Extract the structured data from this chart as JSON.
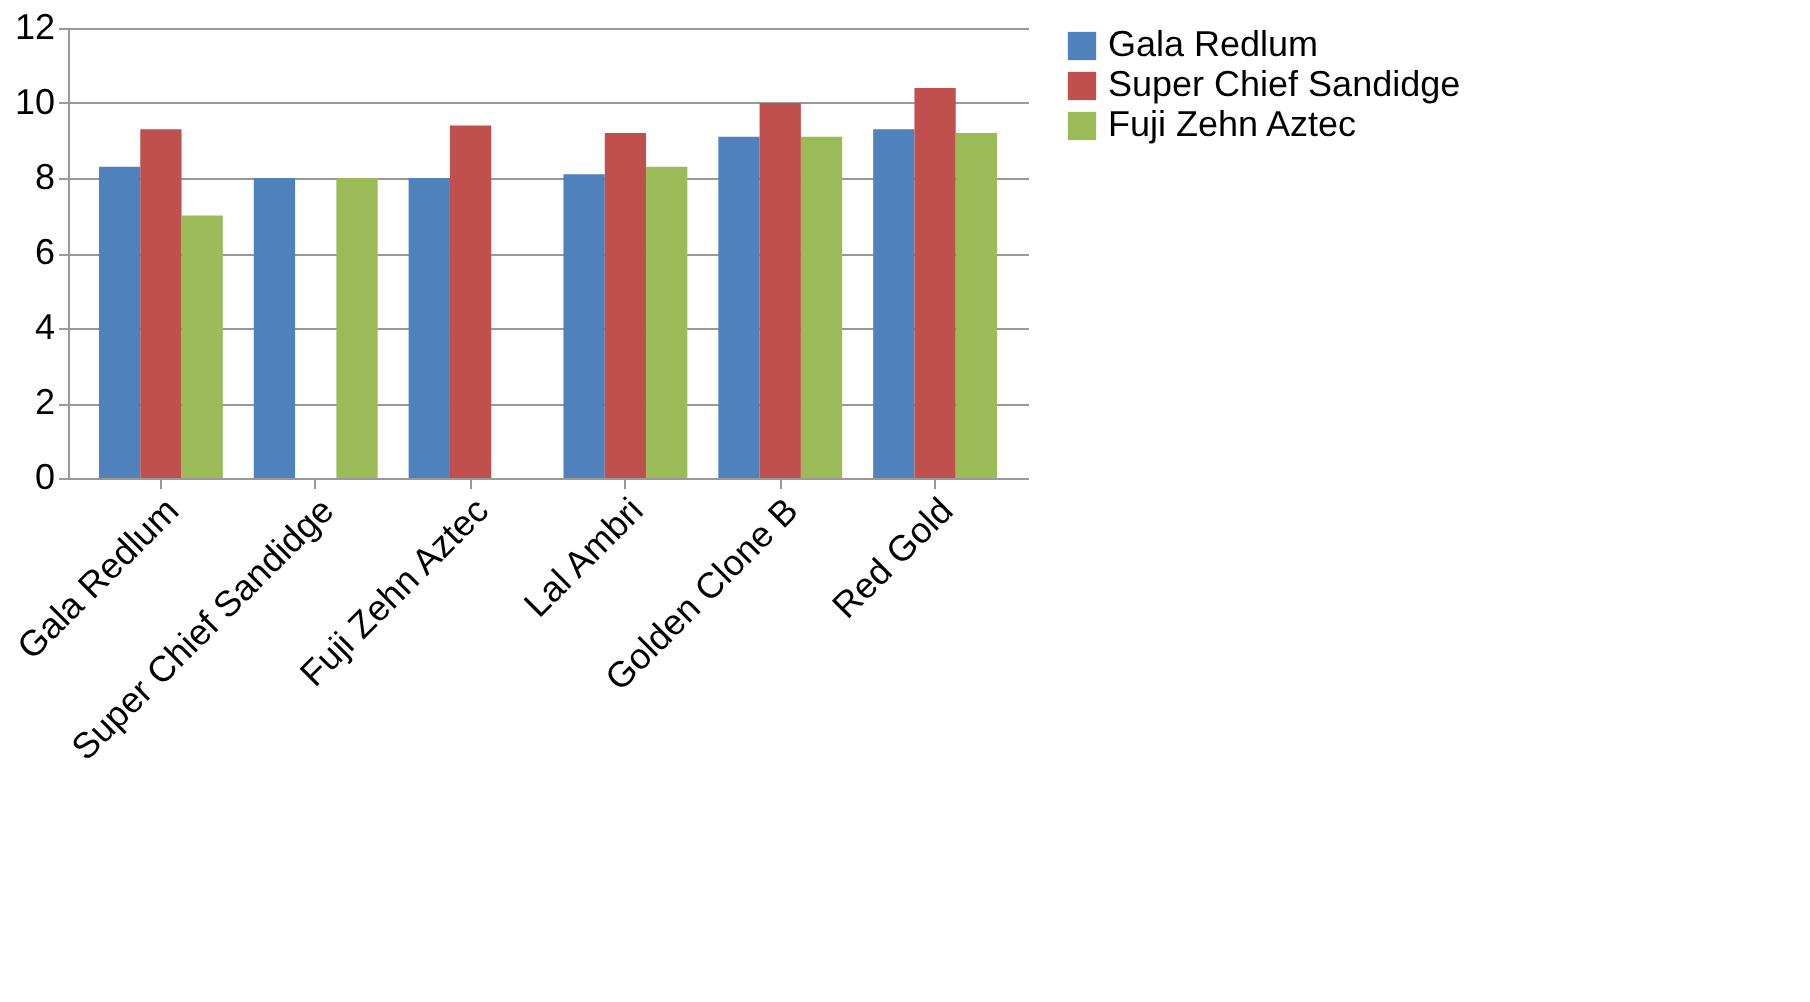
{
  "chart_data": {
    "type": "bar",
    "categories": [
      "Gala Redlum",
      "Super Chief Sandidge",
      "Fuji Zehn Aztec",
      "Lal Ambri",
      "Golden Clone B",
      "Red Gold"
    ],
    "series": [
      {
        "name": "Gala Redlum",
        "color": "#4f81bd",
        "values": [
          8.3,
          8.0,
          8.0,
          8.1,
          9.1,
          9.3
        ]
      },
      {
        "name": "Super Chief Sandidge",
        "color": "#c0504d",
        "values": [
          9.3,
          0,
          9.4,
          9.2,
          10.0,
          10.4
        ]
      },
      {
        "name": "Fuji Zehn Aztec",
        "color": "#9bbb59",
        "values": [
          7.0,
          8.0,
          0,
          8.3,
          9.1,
          9.2
        ]
      }
    ],
    "ylim": [
      0,
      12
    ],
    "yticks": [
      0,
      2,
      4,
      6,
      8,
      10,
      12
    ],
    "grid": "y",
    "legend": "right"
  }
}
